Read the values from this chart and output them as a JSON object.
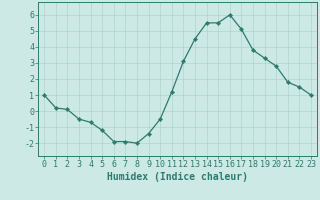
{
  "x": [
    0,
    1,
    2,
    3,
    4,
    5,
    6,
    7,
    8,
    9,
    10,
    11,
    12,
    13,
    14,
    15,
    16,
    17,
    18,
    19,
    20,
    21,
    22,
    23
  ],
  "y": [
    1.0,
    0.2,
    0.1,
    -0.5,
    -0.7,
    -1.2,
    -1.9,
    -1.9,
    -2.0,
    -1.4,
    -0.5,
    1.2,
    3.1,
    4.5,
    5.5,
    5.5,
    6.0,
    5.1,
    3.8,
    3.3,
    2.8,
    1.8,
    1.5,
    1.0
  ],
  "line_color": "#2d7b6e",
  "marker": "D",
  "marker_size": 2.2,
  "bg_color": "#cce9e5",
  "grid_color": "#b0d4cf",
  "xlabel": "Humidex (Indice chaleur)",
  "xlim": [
    -0.5,
    23.5
  ],
  "ylim": [
    -2.8,
    6.8
  ],
  "yticks": [
    -2,
    -1,
    0,
    1,
    2,
    3,
    4,
    5,
    6
  ],
  "xticks": [
    0,
    1,
    2,
    3,
    4,
    5,
    6,
    7,
    8,
    9,
    10,
    11,
    12,
    13,
    14,
    15,
    16,
    17,
    18,
    19,
    20,
    21,
    22,
    23
  ],
  "tick_color": "#2d7b6e",
  "label_fontsize": 7.0,
  "tick_fontsize": 6.0
}
